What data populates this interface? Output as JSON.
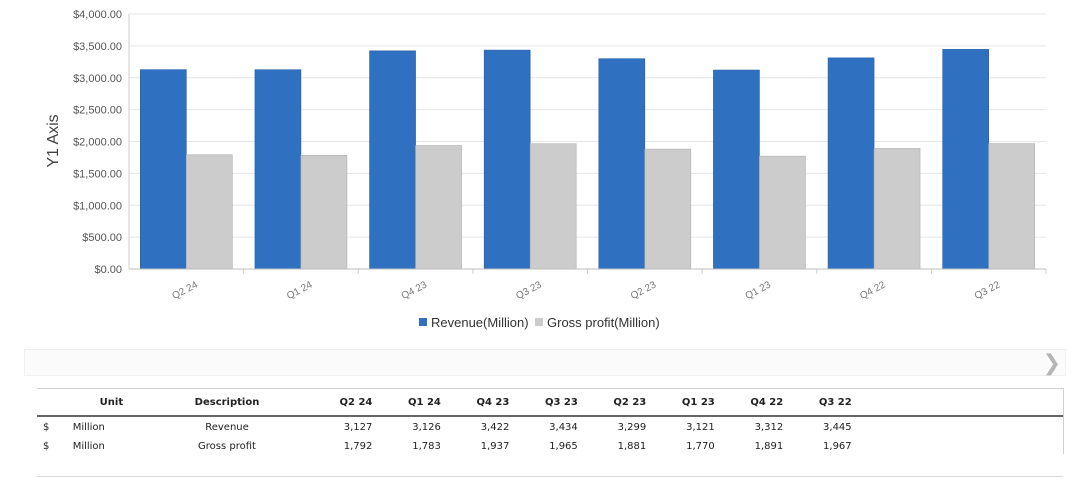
{
  "chart_data": {
    "type": "bar",
    "categories": [
      "Q2 24",
      "Q1 24",
      "Q4 23",
      "Q3 23",
      "Q2 23",
      "Q1 23",
      "Q4 22",
      "Q3 22"
    ],
    "series": [
      {
        "name": "Revenue(Million)",
        "values": [
          3127,
          3126,
          3422,
          3434,
          3299,
          3121,
          3312,
          3445
        ],
        "color": "#3070c0"
      },
      {
        "name": "Gross profit(Million)",
        "values": [
          1792,
          1783,
          1937,
          1965,
          1881,
          1770,
          1891,
          1967
        ],
        "color": "#cccccc"
      }
    ],
    "ylabel": "Y1 Axis",
    "ylim": [
      0,
      4000
    ],
    "yticks": [
      "$0.00",
      "$500.00",
      "$1,000.00",
      "$1,500.00",
      "$2,000.00",
      "$2,500.00",
      "$3,000.00",
      "$3,500.00",
      "$4,000.00"
    ],
    "ytick_values": [
      0,
      500,
      1000,
      1500,
      2000,
      2500,
      3000,
      3500,
      4000
    ],
    "grid": true,
    "legend_position": "bottom"
  },
  "table": {
    "headers": {
      "currency": "",
      "unit": "Unit",
      "description": "Description",
      "periods": [
        "Q2 24",
        "Q1 24",
        "Q4 23",
        "Q3 23",
        "Q2 23",
        "Q1 23",
        "Q4 22",
        "Q3 22"
      ]
    },
    "rows": [
      {
        "currency": "$",
        "unit": "Million",
        "description": "Revenue",
        "values": [
          "3,127",
          "3,126",
          "3,422",
          "3,434",
          "3,299",
          "3,121",
          "3,312",
          "3,445"
        ]
      },
      {
        "currency": "$",
        "unit": "Million",
        "description": "Gross profit",
        "values": [
          "1,792",
          "1,783",
          "1,937",
          "1,965",
          "1,881",
          "1,770",
          "1,891",
          "1,967"
        ]
      }
    ]
  },
  "scroller": {
    "arrow_glyph": "❯"
  }
}
